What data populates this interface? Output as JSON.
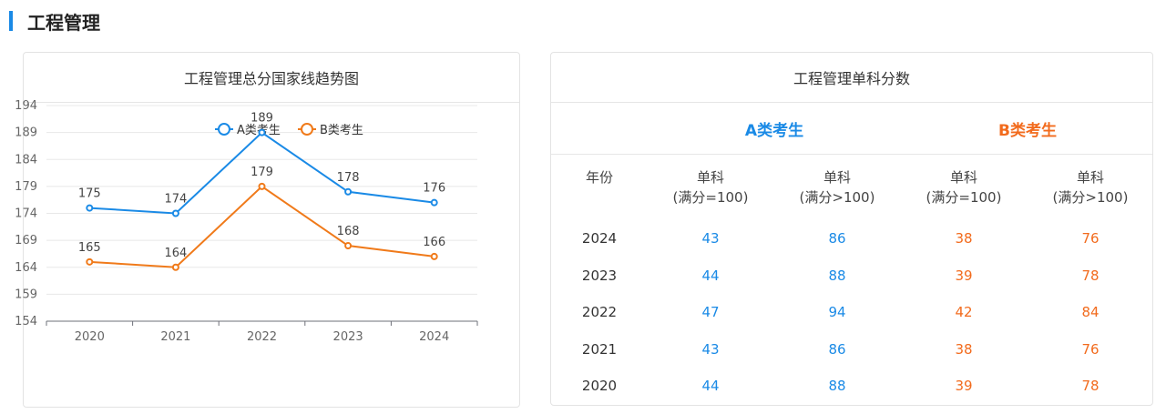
{
  "section": {
    "title": "工程管理"
  },
  "chart_data": {
    "type": "line",
    "title": "工程管理总分国家线趋势图",
    "categories": [
      "2020",
      "2021",
      "2022",
      "2023",
      "2024"
    ],
    "series": [
      {
        "name": "A类考生",
        "values": [
          175,
          174,
          189,
          178,
          176
        ],
        "color": "#1a8ae6"
      },
      {
        "name": "B类考生",
        "values": [
          165,
          164,
          179,
          168,
          166
        ],
        "color": "#f07a1a"
      }
    ],
    "yticks": [
      154,
      159,
      164,
      169,
      174,
      179,
      184,
      189,
      194
    ],
    "ylim": [
      154,
      194
    ],
    "legend": "top-center",
    "grid": true
  },
  "table": {
    "title": "工程管理单科分数",
    "groups": {
      "a": "A类考生",
      "b": "B类考生"
    },
    "headers": {
      "year": "年份",
      "a1": [
        "单科",
        "(满分=100)"
      ],
      "a2": [
        "单科",
        "(满分>100)"
      ],
      "b1": [
        "单科",
        "(满分=100)"
      ],
      "b2": [
        "单科",
        "(满分>100)"
      ]
    },
    "rows": [
      {
        "year": "2024",
        "a1": "43",
        "a2": "86",
        "b1": "38",
        "b2": "76"
      },
      {
        "year": "2023",
        "a1": "44",
        "a2": "88",
        "b1": "39",
        "b2": "78"
      },
      {
        "year": "2022",
        "a1": "47",
        "a2": "94",
        "b1": "42",
        "b2": "84"
      },
      {
        "year": "2021",
        "a1": "43",
        "a2": "86",
        "b1": "38",
        "b2": "76"
      },
      {
        "year": "2020",
        "a1": "44",
        "a2": "88",
        "b1": "39",
        "b2": "78"
      }
    ]
  }
}
